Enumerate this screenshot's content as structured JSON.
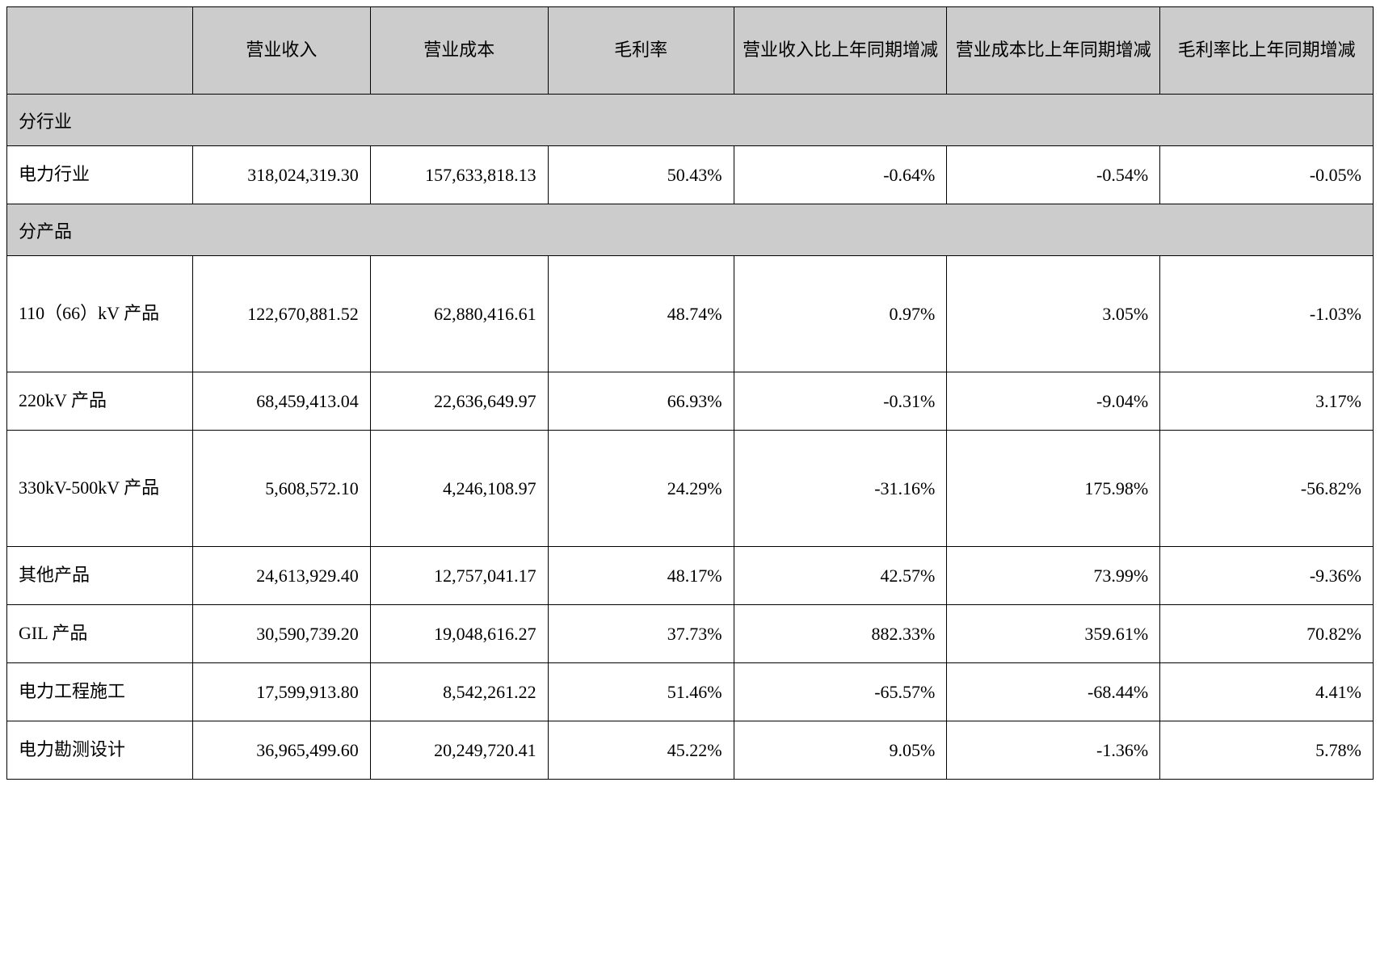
{
  "table": {
    "columns": [
      {
        "label": "",
        "width_pct": 13.6,
        "align": "left"
      },
      {
        "label": "营业收入",
        "width_pct": 13.0,
        "align": "right"
      },
      {
        "label": "营业成本",
        "width_pct": 13.0,
        "align": "right"
      },
      {
        "label": "毛利率",
        "width_pct": 13.6,
        "align": "right"
      },
      {
        "label": "营业收入比上年同期增减",
        "width_pct": 15.6,
        "align": "right"
      },
      {
        "label": "营业成本比上年同期增减",
        "width_pct": 15.6,
        "align": "right"
      },
      {
        "label": "毛利率比上年同期增减",
        "width_pct": 15.6,
        "align": "right"
      }
    ],
    "sections": [
      {
        "title": "分行业",
        "rows": [
          {
            "label": "电力行业",
            "revenue": "318,024,319.30",
            "cost": "157,633,818.13",
            "margin": "50.43%",
            "rev_yoy": "-0.64%",
            "cost_yoy": "-0.54%",
            "margin_yoy": "-0.05%",
            "tall": false
          }
        ]
      },
      {
        "title": "分产品",
        "rows": [
          {
            "label": "110（66）kV 产品",
            "revenue": "122,670,881.52",
            "cost": "62,880,416.61",
            "margin": "48.74%",
            "rev_yoy": "0.97%",
            "cost_yoy": "3.05%",
            "margin_yoy": "-1.03%",
            "tall": true
          },
          {
            "label": "220kV 产品",
            "revenue": "68,459,413.04",
            "cost": "22,636,649.97",
            "margin": "66.93%",
            "rev_yoy": "-0.31%",
            "cost_yoy": "-9.04%",
            "margin_yoy": "3.17%",
            "tall": false
          },
          {
            "label": "330kV-500kV 产品",
            "revenue": "5,608,572.10",
            "cost": "4,246,108.97",
            "margin": "24.29%",
            "rev_yoy": "-31.16%",
            "cost_yoy": "175.98%",
            "margin_yoy": "-56.82%",
            "tall": true
          },
          {
            "label": "其他产品",
            "revenue": "24,613,929.40",
            "cost": "12,757,041.17",
            "margin": "48.17%",
            "rev_yoy": "42.57%",
            "cost_yoy": "73.99%",
            "margin_yoy": "-9.36%",
            "tall": false
          },
          {
            "label": "GIL 产品",
            "revenue": "30,590,739.20",
            "cost": "19,048,616.27",
            "margin": "37.73%",
            "rev_yoy": "882.33%",
            "cost_yoy": "359.61%",
            "margin_yoy": "70.82%",
            "tall": false
          },
          {
            "label": "电力工程施工",
            "revenue": "17,599,913.80",
            "cost": "8,542,261.22",
            "margin": "51.46%",
            "rev_yoy": "-65.57%",
            "cost_yoy": "-68.44%",
            "margin_yoy": "4.41%",
            "tall": false
          },
          {
            "label": "电力勘测设计",
            "revenue": "36,965,499.60",
            "cost": "20,249,720.41",
            "margin": "45.22%",
            "rev_yoy": "9.05%",
            "cost_yoy": "-1.36%",
            "margin_yoy": "5.78%",
            "tall": false
          }
        ]
      }
    ],
    "colors": {
      "header_bg": "#cccccc",
      "section_bg": "#cccccc",
      "cell_bg": "#ffffff",
      "border": "#000000",
      "text": "#000000"
    },
    "font": {
      "family": "SimSun",
      "size_pt": 16
    }
  }
}
